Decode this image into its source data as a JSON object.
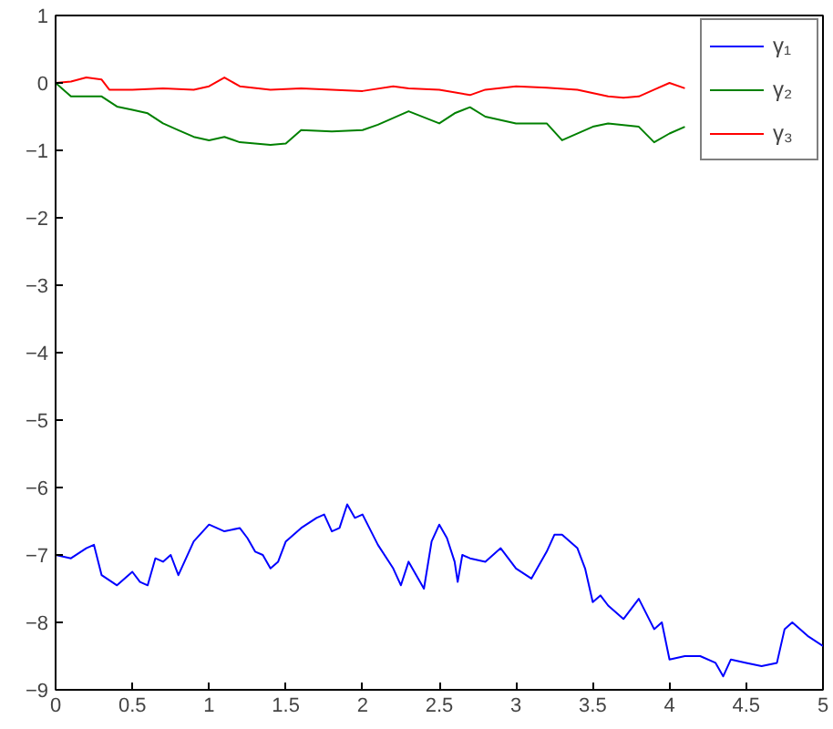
{
  "chart_data": {
    "type": "line",
    "xlim": [
      0,
      5
    ],
    "ylim": [
      -9,
      1
    ],
    "xticks": [
      0,
      0.5,
      1,
      1.5,
      2,
      2.5,
      3,
      3.5,
      4,
      4.5,
      5
    ],
    "yticks": [
      1,
      0,
      -1,
      -2,
      -3,
      -4,
      -5,
      -6,
      -7,
      -8,
      -9
    ],
    "grid": false,
    "legend": "top right",
    "line_style": "solid",
    "marker": "none",
    "series": [
      {
        "name": "γ₁",
        "color": "#0000ff",
        "x": [
          0,
          0.1,
          0.2,
          0.25,
          0.3,
          0.4,
          0.5,
          0.55,
          0.6,
          0.65,
          0.7,
          0.75,
          0.8,
          0.9,
          1.0,
          1.1,
          1.2,
          1.25,
          1.3,
          1.35,
          1.4,
          1.45,
          1.5,
          1.6,
          1.7,
          1.75,
          1.8,
          1.85,
          1.9,
          1.95,
          2.0,
          2.1,
          2.2,
          2.25,
          2.3,
          2.4,
          2.45,
          2.5,
          2.55,
          2.6,
          2.62,
          2.65,
          2.7,
          2.8,
          2.9,
          3.0,
          3.1,
          3.2,
          3.25,
          3.3,
          3.4,
          3.45,
          3.5,
          3.55,
          3.6,
          3.7,
          3.8,
          3.9,
          3.95,
          4.0,
          4.1,
          4.2,
          4.3,
          4.35,
          4.4,
          4.5,
          4.6,
          4.7,
          4.75,
          4.8,
          4.9,
          5.0
        ],
        "values": [
          -7.0,
          -7.05,
          -6.9,
          -6.85,
          -7.3,
          -7.45,
          -7.25,
          -7.4,
          -7.45,
          -7.05,
          -7.1,
          -7.0,
          -7.3,
          -6.8,
          -6.55,
          -6.65,
          -6.6,
          -6.75,
          -6.95,
          -7.0,
          -7.2,
          -7.1,
          -6.8,
          -6.6,
          -6.45,
          -6.4,
          -6.65,
          -6.6,
          -6.25,
          -6.45,
          -6.4,
          -6.85,
          -7.2,
          -7.45,
          -7.1,
          -7.5,
          -6.8,
          -6.55,
          -6.75,
          -7.1,
          -7.4,
          -7.0,
          -7.05,
          -7.1,
          -6.9,
          -7.2,
          -7.35,
          -6.95,
          -6.7,
          -6.7,
          -6.9,
          -7.2,
          -7.7,
          -7.6,
          -7.75,
          -7.95,
          -7.65,
          -8.1,
          -8.0,
          -8.55,
          -8.5,
          -8.5,
          -8.6,
          -8.8,
          -8.55,
          -8.6,
          -8.65,
          -8.6,
          -8.1,
          -8.0,
          -8.2,
          -8.35
        ]
      },
      {
        "name": "γ₂",
        "color": "#008000",
        "x": [
          0,
          0.1,
          0.2,
          0.3,
          0.4,
          0.5,
          0.6,
          0.7,
          0.8,
          0.9,
          1.0,
          1.1,
          1.2,
          1.4,
          1.5,
          1.6,
          1.8,
          2.0,
          2.1,
          2.3,
          2.5,
          2.6,
          2.7,
          2.8,
          3.0,
          3.2,
          3.3,
          3.5,
          3.6,
          3.8,
          3.9,
          4.0,
          4.1
        ],
        "values": [
          0,
          -0.2,
          -0.2,
          -0.2,
          -0.35,
          -0.4,
          -0.45,
          -0.6,
          -0.7,
          -0.8,
          -0.85,
          -0.8,
          -0.88,
          -0.92,
          -0.9,
          -0.7,
          -0.72,
          -0.7,
          -0.62,
          -0.42,
          -0.6,
          -0.45,
          -0.36,
          -0.5,
          -0.6,
          -0.6,
          -0.85,
          -0.65,
          -0.6,
          -0.65,
          -0.88,
          -0.75,
          -0.65
        ]
      },
      {
        "name": "γ₃",
        "color": "#ff0000",
        "x": [
          0,
          0.1,
          0.2,
          0.3,
          0.35,
          0.5,
          0.7,
          0.9,
          1.0,
          1.1,
          1.2,
          1.4,
          1.6,
          1.8,
          2.0,
          2.2,
          2.3,
          2.5,
          2.7,
          2.8,
          3.0,
          3.2,
          3.4,
          3.6,
          3.7,
          3.8,
          3.9,
          4.0,
          4.1
        ],
        "values": [
          0,
          0.02,
          0.08,
          0.05,
          -0.1,
          -0.1,
          -0.08,
          -0.1,
          -0.05,
          0.08,
          -0.05,
          -0.1,
          -0.08,
          -0.1,
          -0.12,
          -0.05,
          -0.08,
          -0.1,
          -0.18,
          -0.1,
          -0.05,
          -0.07,
          -0.1,
          -0.2,
          -0.22,
          -0.2,
          -0.1,
          0.0,
          -0.08
        ]
      }
    ]
  }
}
